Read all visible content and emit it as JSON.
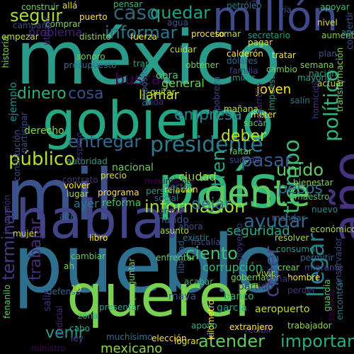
{
  "background": "#000000",
  "words": [
    {
      "text": "méxico",
      "color": "#2a9a8a"
    },
    {
      "text": "pueblo",
      "color": "#2e6f8e"
    },
    {
      "text": "gobierno",
      "color": "#24a784"
    },
    {
      "text": "mil",
      "color": "#3b528b"
    },
    {
      "text": "país",
      "color": "#35b779"
    },
    {
      "text": "hablar",
      "color": "#414487"
    },
    {
      "text": "querer",
      "color": "#7ad151"
    },
    {
      "text": "millón",
      "color": "#3e4a89"
    },
    {
      "text": "gente",
      "color": "#5ec962"
    },
    {
      "text": "año",
      "color": "#46337e"
    },
    {
      "text": "presidente",
      "color": "#2c7c8e"
    },
    {
      "text": "información",
      "color": "#a5db36"
    },
    {
      "text": "ayudar",
      "color": "#31688e"
    },
    {
      "text": "llegar",
      "color": "#26828e"
    },
    {
      "text": "seguir",
      "color": "#a8db34"
    },
    {
      "text": "tiempo",
      "color": "#3aba76"
    },
    {
      "text": "caso",
      "color": "#30697e"
    },
    {
      "text": "informar",
      "color": "#2a788e"
    },
    {
      "text": "quedar",
      "color": "#1fa187"
    },
    {
      "text": "importante",
      "color": "#29af7f"
    },
    {
      "text": "mexicano",
      "color": "#90d743"
    },
    {
      "text": "atender",
      "color": "#63cb5f"
    },
    {
      "text": "venir",
      "color": "#2a9a8a"
    },
    {
      "text": "ciento",
      "color": "#43bf71"
    },
    {
      "text": "unido",
      "color": "#63cb5f"
    },
    {
      "text": "pasar",
      "color": "#38598c"
    },
    {
      "text": "público",
      "color": "#b8de29"
    },
    {
      "text": "entregar",
      "color": "#2f6b8e"
    },
    {
      "text": "empresa",
      "color": "#277f8e"
    },
    {
      "text": "deber",
      "color": "#bddf26"
    },
    {
      "text": "creer",
      "color": "#3f4788"
    },
    {
      "text": "terminar",
      "color": "#443a83"
    },
    {
      "text": "trabajar",
      "color": "#472d7b"
    },
    {
      "text": "dinero",
      "color": "#2db27d"
    },
    {
      "text": "cosa",
      "color": "#3c4f8a"
    },
    {
      "text": "político",
      "color": "#31b57b"
    },
    {
      "text": "pesos",
      "color": "#2d708e"
    },
    {
      "text": "dejar",
      "color": "#2d718e"
    },
    {
      "text": "seguridad",
      "color": "#25ac82"
    },
    {
      "text": "tren",
      "color": "#22a785"
    },
    {
      "text": "buscar",
      "color": "#440154"
    },
    {
      "text": "llamar",
      "color": "#d0e11c"
    },
    {
      "text": "nacional",
      "color": "#6ece58"
    },
    {
      "text": "ciudad",
      "color": "#a2da37"
    },
    {
      "text": "corrupción",
      "color": "#35b779"
    },
    {
      "text": "ejemplo",
      "color": "#21918c"
    },
    {
      "text": "problema",
      "color": "#482173"
    },
    {
      "text": "derecho",
      "color": "#85d54a"
    },
    {
      "text": "obra",
      "color": "#52c569"
    },
    {
      "text": "reforma",
      "color": "#4ac16d"
    },
    {
      "text": "mundo",
      "color": "#3b528b"
    },
    {
      "text": "joven",
      "color": "#fde725"
    },
    {
      "text": "ayer",
      "color": "#2a788e"
    },
    {
      "text": "general",
      "color": "#70cf57"
    },
    {
      "text": "grupo",
      "color": "#482878"
    },
    {
      "text": "nuevo",
      "color": "#21918c"
    },
    {
      "text": "maestro",
      "color": "#4ac16d"
    },
    {
      "text": "gobernador",
      "color": "#7ad151"
    },
    {
      "text": "partido",
      "color": "#46327e"
    },
    {
      "text": "banco",
      "color": "#2db27d"
    },
    {
      "text": "maya",
      "color": "#3b528b"
    },
    {
      "text": "garcía",
      "color": "#1fa187"
    },
    {
      "text": "aeropuerto",
      "color": "#bddf26"
    },
    {
      "text": "recibir",
      "color": "#46337e"
    },
    {
      "text": "trabajador",
      "color": "#90d743"
    },
    {
      "text": "extranjero",
      "color": "#fde725"
    },
    {
      "text": "lograr",
      "color": "#e5e419"
    },
    {
      "text": "apoyo",
      "color": "#29af7f"
    },
    {
      "text": "libertad",
      "color": "#38598c"
    },
    {
      "text": "elección",
      "color": "#fde725"
    },
    {
      "text": "cabo",
      "color": "#22a884"
    },
    {
      "text": "zona",
      "color": "#22a884"
    },
    {
      "text": "ley",
      "color": "#3b528b"
    },
    {
      "text": "salir",
      "color": "#472c7a"
    },
    {
      "text": "ministro",
      "color": "#440154"
    },
    {
      "text": "judicial",
      "color": "#482878"
    },
    {
      "text": "muchísimo",
      "color": "#2c728e"
    },
    {
      "text": "defensa",
      "color": "#31688e"
    },
    {
      "text": "mujer",
      "color": "#dde318"
    },
    {
      "text": "libro",
      "color": "#fde725"
    },
    {
      "text": "cambiar",
      "color": "#6ece58"
    },
    {
      "text": "servicio",
      "color": "#440154"
    },
    {
      "text": "conservador",
      "color": "#3e4a89"
    },
    {
      "text": "guardia",
      "color": "#5ec962"
    },
    {
      "text": "fenanilo",
      "color": "#5ec962"
    },
    {
      "text": "ah",
      "color": "#7ad151"
    },
    {
      "text": "10",
      "color": "#c2df23"
    },
    {
      "text": "alto",
      "color": "#31688e"
    },
    {
      "text": "económico",
      "color": "#a8db34"
    },
    {
      "text": "bienestar",
      "color": "#84d44b"
    },
    {
      "text": "resolver",
      "color": "#a5db36"
    },
    {
      "text": "consumo",
      "color": "#1f9a8a"
    },
    {
      "text": "asunto",
      "color": "#a8db34"
    },
    {
      "text": "existir",
      "color": "#2a788e"
    },
    {
      "text": "ahora",
      "color": "#3b528b"
    },
    {
      "text": "programa",
      "color": "#fde725"
    },
    {
      "text": "volver",
      "color": "#fde725"
    },
    {
      "text": "lugar",
      "color": "#a5db36"
    },
    {
      "text": "precio",
      "color": "#dde318"
    },
    {
      "text": "contrato",
      "color": "#46327e"
    },
    {
      "text": "persona",
      "color": "#1fa187"
    },
    {
      "text": "relación",
      "color": "#dde318"
    },
    {
      "text": "social",
      "color": "#2c728e"
    },
    {
      "text": "ver",
      "color": "#90d743"
    },
    {
      "text": "sector",
      "color": "#31688e"
    },
    {
      "text": "autoridad",
      "color": "#2a9a8a"
    },
    {
      "text": "participar",
      "color": "#3e4a89"
    },
    {
      "text": "constitución",
      "color": "#3b528b"
    },
    {
      "text": "inversión",
      "color": "#472d7b"
    },
    {
      "text": "historia",
      "color": "#84d44b"
    },
    {
      "text": "empezar",
      "color": "#c2df23"
    },
    {
      "text": "construir",
      "color": "#6ece58"
    },
    {
      "text": "comprar",
      "color": "#84d44b"
    },
    {
      "text": "campaña",
      "color": "#3e4a89"
    },
    {
      "text": "allá",
      "color": "#e5e419"
    },
    {
      "text": "puerto",
      "color": "#fde725"
    },
    {
      "text": "pensar",
      "color": "#35b779"
    },
    {
      "text": "agua",
      "color": "#3b528b"
    },
    {
      "text": "petróleo",
      "color": "#2a788e"
    },
    {
      "text": "chiapas",
      "color": "#46327e"
    },
    {
      "text": "vía",
      "color": "#3b528b"
    },
    {
      "text": "apoyar",
      "color": "#43bf71"
    },
    {
      "text": "aumentar",
      "color": "#7ad151"
    },
    {
      "text": "nivel",
      "color": "#dde318"
    },
    {
      "text": "secretario",
      "color": "#1f9e89"
    },
    {
      "text": "tomar",
      "color": "#c2df23"
    },
    {
      "text": "proceso",
      "color": "#fde725"
    },
    {
      "text": "fuerza",
      "color": "#fde725"
    },
    {
      "text": "distinto",
      "color": "#8fd744"
    },
    {
      "text": "sonoro",
      "color": "#6ece58"
    },
    {
      "text": "presupuesto",
      "color": "#2c728e"
    },
    {
      "text": "utilizar",
      "color": "#472c7a"
    },
    {
      "text": "plan",
      "color": "#3b528b"
    },
    {
      "text": "semana",
      "color": "#7ad151"
    },
    {
      "text": "nación",
      "color": "#22a884"
    },
    {
      "text": "actuar",
      "color": "#bddf26"
    },
    {
      "text": "convertir",
      "color": "#3b528b"
    },
    {
      "text": "transformación",
      "color": "#7ad151"
    },
    {
      "text": "mayoría",
      "color": "#22a884"
    },
    {
      "text": "tratar",
      "color": "#f0e51c"
    },
    {
      "text": "cambio",
      "color": "#7ad151"
    },
    {
      "text": "dólares",
      "color": "#31688e"
    },
    {
      "text": "familia",
      "color": "#433e85"
    },
    {
      "text": "calderón",
      "color": "#fde725"
    },
    {
      "text": "mirar",
      "color": "#1f9a8a"
    },
    {
      "text": "pagar",
      "color": "#dde318"
    },
    {
      "text": "cuidar",
      "color": "#c2df23"
    },
    {
      "text": "obtener",
      "color": "#6ece58"
    },
    {
      "text": "quitar",
      "color": "#a8db34"
    },
    {
      "text": "tramo",
      "color": "#22a884"
    },
    {
      "text": "propósito",
      "color": "#31688e"
    },
    {
      "text": "vida",
      "color": "#472d7b"
    },
    {
      "text": "mañana",
      "color": "#bddf26"
    },
    {
      "text": "salín",
      "color": "#2a788e"
    },
    {
      "text": "impuesto",
      "color": "#2a9a8a"
    },
    {
      "text": "homicidio",
      "color": "#46327e"
    },
    {
      "text": "meter",
      "color": "#fde725"
    },
    {
      "text": "sacar",
      "color": "#5ec962"
    },
    {
      "text": "pobreza",
      "color": "#414487"
    },
    {
      "text": "faltar",
      "color": "#6ece58"
    },
    {
      "text": "suceder",
      "color": "#3e4a89"
    },
    {
      "text": "desarrollo",
      "color": "#482878"
    },
    {
      "text": "kilómetro",
      "color": "#fde725"
    },
    {
      "text": "movimiento",
      "color": "#440154"
    },
    {
      "text": "respeto",
      "color": "#472c7a"
    },
    {
      "text": "fiscalía",
      "color": "#3e4a89"
    },
    {
      "text": "migrante",
      "color": "#3e4a89"
    },
    {
      "text": "proyecto",
      "color": "#46327e"
    },
    {
      "text": "hombre",
      "color": "#fde725"
    },
    {
      "text": "crear",
      "color": "#7ad151"
    },
    {
      "text": "permitir",
      "color": "#31688e"
    },
    {
      "text": "ganar",
      "color": "#46327e"
    },
    {
      "text": "vivir",
      "color": "#a8db34"
    },
    {
      "text": "perder",
      "color": "#46327e"
    },
    {
      "text": "acabar",
      "color": "#35b779"
    },
    {
      "text": "enfrentar",
      "color": "#5ec962"
    },
    {
      "text": "preguntar",
      "color": "#7ad151"
    },
    {
      "text": "presentar",
      "color": "#22a884"
    },
    {
      "text": "encontrar",
      "color": "#2a788e"
    },
    {
      "text": "apoyar",
      "color": "#2a788e"
    },
    {
      "text": "mandar",
      "color": "#31688e"
    }
  ]
}
